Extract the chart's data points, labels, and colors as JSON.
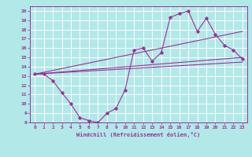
{
  "xlabel": "Windchill (Refroidissement éolien,°C)",
  "ylabel": "",
  "xlim": [
    -0.5,
    23.5
  ],
  "ylim": [
    8,
    20.5
  ],
  "xticks": [
    0,
    1,
    2,
    3,
    4,
    5,
    6,
    7,
    8,
    9,
    10,
    11,
    12,
    13,
    14,
    15,
    16,
    17,
    18,
    19,
    20,
    21,
    22,
    23
  ],
  "yticks": [
    8,
    9,
    10,
    11,
    12,
    13,
    14,
    15,
    16,
    17,
    18,
    19,
    20
  ],
  "bg_color": "#b2e8e8",
  "line_color": "#993399",
  "grid_color": "#ffffff",
  "series": {
    "main": {
      "x": [
        0,
        1,
        2,
        3,
        4,
        5,
        6,
        7,
        8,
        9,
        10,
        11,
        12,
        13,
        14,
        15,
        16,
        17,
        18,
        19,
        20,
        21,
        22,
        23
      ],
      "y": [
        13.2,
        13.2,
        12.5,
        11.2,
        10.0,
        8.5,
        8.2,
        8.0,
        9.0,
        9.5,
        11.5,
        15.8,
        16.0,
        14.6,
        15.5,
        19.3,
        19.7,
        20.0,
        17.8,
        19.2,
        17.5,
        16.3,
        15.8,
        14.8
      ]
    },
    "upper_line": {
      "x": [
        0,
        23
      ],
      "y": [
        13.2,
        17.8
      ]
    },
    "middle_line": {
      "x": [
        0,
        23
      ],
      "y": [
        13.2,
        15.0
      ]
    },
    "lower_line": {
      "x": [
        0,
        23
      ],
      "y": [
        13.2,
        14.5
      ]
    }
  },
  "font_size_tick": 4.5,
  "font_size_xlabel": 5.0
}
